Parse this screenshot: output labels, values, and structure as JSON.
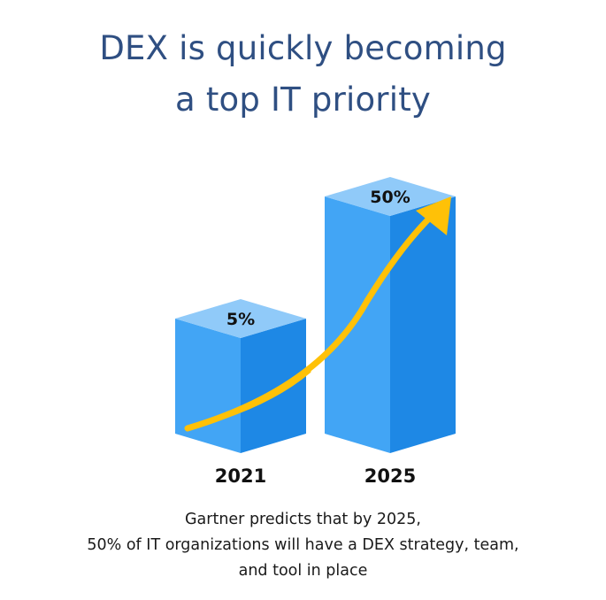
{
  "title": {
    "line1": "DEX is quickly becoming",
    "line2": "a top IT priority"
  },
  "chart_data": {
    "type": "bar",
    "categories": [
      "2021",
      "2025"
    ],
    "values": [
      5,
      50
    ],
    "value_labels": [
      "5%",
      "50%"
    ],
    "trend_arrow": true,
    "colors": {
      "front": "#42a5f5",
      "side": "#1e88e5",
      "top": "#90caf9",
      "arrow": "#ffc107"
    }
  },
  "caption": {
    "line1": "Gartner predicts that by 2025,",
    "line2": "50% of IT organizations will have a DEX strategy, team,",
    "line3": "and tool in place"
  }
}
